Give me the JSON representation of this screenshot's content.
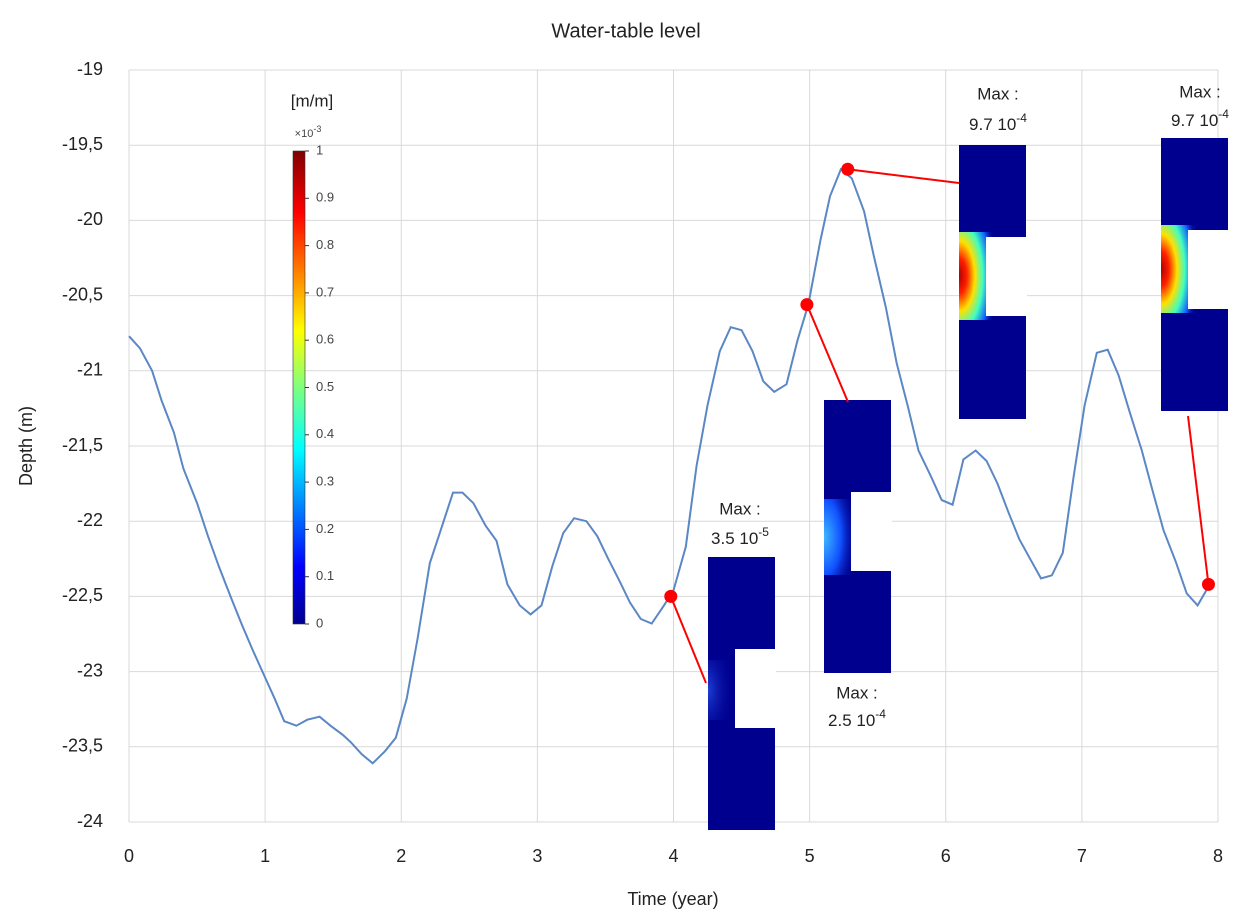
{
  "chart_data": {
    "type": "line",
    "title": "Water-table level",
    "x_label": "Time (year)",
    "y_label": "Depth (m)",
    "xlim": [
      0,
      8
    ],
    "xticks": [
      0,
      1,
      2,
      3,
      4,
      5,
      6,
      7,
      8
    ],
    "ylim": [
      -24,
      -19
    ],
    "yticks": [
      -24,
      {
        "value": -23.5,
        "label": "-23,5"
      },
      -23,
      {
        "value": -22.5,
        "label": "-22,5"
      },
      -22,
      {
        "value": -21.5,
        "label": "-21,5"
      },
      -21,
      {
        "value": -20.5,
        "label": "-20,5"
      },
      -20,
      {
        "value": -19.5,
        "label": "-19,5"
      },
      -19
    ],
    "grid": true,
    "color": "#5b87c5",
    "x": [
      0,
      0.08,
      0.17,
      0.24,
      0.33,
      0.4,
      0.5,
      0.58,
      0.66,
      0.75,
      0.83,
      0.91,
      0.99,
      1.07,
      1.14,
      1.23,
      1.31,
      1.4,
      1.48,
      1.57,
      1.63,
      1.71,
      1.79,
      1.88,
      1.96,
      2.04,
      2.12,
      2.21,
      2.29,
      2.38,
      2.45,
      2.53,
      2.62,
      2.7,
      2.78,
      2.87,
      2.95,
      3.03,
      3.11,
      3.19,
      3.27,
      3.36,
      3.44,
      3.52,
      3.6,
      3.68,
      3.76,
      3.84,
      3.93,
      4.0,
      4.09,
      4.17,
      4.25,
      4.34,
      4.42,
      4.5,
      4.58,
      4.66,
      4.74,
      4.83,
      4.91,
      4.99,
      5.08,
      5.15,
      5.23,
      5.31,
      5.4,
      5.47,
      5.56,
      5.64,
      5.72,
      5.8,
      5.89,
      5.97,
      6.05,
      6.13,
      6.22,
      6.3,
      6.38,
      6.46,
      6.54,
      6.62,
      6.7,
      6.78,
      6.86,
      6.94,
      7.02,
      7.11,
      7.19,
      7.27,
      7.35,
      7.44,
      7.52,
      7.6,
      7.69,
      7.77,
      7.85,
      7.94
    ],
    "values": [
      -20.77,
      -20.85,
      -21.0,
      -21.2,
      -21.41,
      -21.65,
      -21.88,
      -22.1,
      -22.3,
      -22.51,
      -22.69,
      -22.86,
      -23.02,
      -23.18,
      -23.33,
      -23.36,
      -23.32,
      -23.3,
      -23.36,
      -23.42,
      -23.47,
      -23.55,
      -23.61,
      -23.53,
      -23.44,
      -23.18,
      -22.78,
      -22.28,
      -22.06,
      -21.81,
      -21.81,
      -21.88,
      -22.03,
      -22.13,
      -22.42,
      -22.56,
      -22.62,
      -22.56,
      -22.3,
      -22.08,
      -21.98,
      -22.0,
      -22.1,
      -22.25,
      -22.39,
      -22.54,
      -22.65,
      -22.68,
      -22.56,
      -22.46,
      -22.17,
      -21.63,
      -21.23,
      -20.87,
      -20.71,
      -20.73,
      -20.87,
      -21.07,
      -21.14,
      -21.09,
      -20.8,
      -20.56,
      -20.13,
      -19.84,
      -19.66,
      -19.72,
      -19.94,
      -20.23,
      -20.58,
      -20.95,
      -21.23,
      -21.53,
      -21.7,
      -21.86,
      -21.89,
      -21.59,
      -21.53,
      -21.6,
      -21.75,
      -21.94,
      -22.12,
      -22.25,
      -22.38,
      -22.36,
      -22.21,
      -21.7,
      -21.23,
      -20.88,
      -20.86,
      -21.03,
      -21.27,
      -21.53,
      -21.8,
      -22.06,
      -22.27,
      -22.48,
      -22.56,
      -22.42
    ],
    "highlights": {
      "color": "#ff0000",
      "x": [
        3.98,
        4.98,
        5.28,
        7.93
      ],
      "y": [
        -22.5,
        -20.56,
        -19.66,
        -22.42
      ]
    },
    "colorbar": {
      "label": "[m/m]",
      "multiplier": "×10",
      "exponent": "-3",
      "ticks": [
        0,
        0.1,
        0.2,
        0.3,
        0.4,
        0.5,
        0.6,
        0.7,
        0.8,
        0.9,
        1
      ]
    },
    "insets": [
      {
        "label": "Max :",
        "value": "3.5 10",
        "exponent": "-5"
      },
      {
        "label": "Max :",
        "value": "2.5 10",
        "exponent": "-4"
      },
      {
        "label": "Max :",
        "value": "9.7 10",
        "exponent": "-4"
      },
      {
        "label": "Max :",
        "value": "9.7 10",
        "exponent": "-4"
      }
    ]
  }
}
